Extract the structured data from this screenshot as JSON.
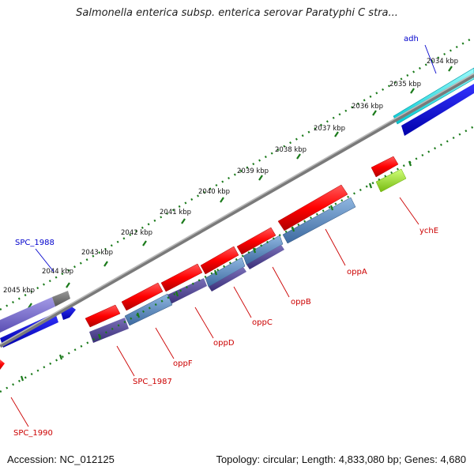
{
  "title": "Salmonella enterica subsp. enterica serovar Paratyphi C stra...",
  "accession": "Accession: NC_012125",
  "summary": "Topology: circular; Length: 4,833,080 bp; Genes: 4,680",
  "ticks": [
    "2034 kbp",
    "2035 kbp",
    "2036 kbp",
    "2037 kbp",
    "2038 kbp",
    "2039 kbp",
    "2040 kbp",
    "2041 kbp",
    "2042 kbp",
    "2043 kbp",
    "2044 kbp",
    "2045 kbp"
  ],
  "gene_labels": [
    {
      "text": "adh",
      "color": "#0000cc"
    },
    {
      "text": "SPC_1988",
      "color": "#0000cc"
    },
    {
      "text": "ychE",
      "color": "#cc0000"
    },
    {
      "text": "oppA",
      "color": "#cc0000"
    },
    {
      "text": "oppB",
      "color": "#cc0000"
    },
    {
      "text": "oppC",
      "color": "#cc0000"
    },
    {
      "text": "oppD",
      "color": "#cc0000"
    },
    {
      "text": "oppF",
      "color": "#cc0000"
    },
    {
      "text": "SPC_1987",
      "color": "#cc0000"
    },
    {
      "text": "SPC_1990",
      "color": "#cc0000"
    }
  ],
  "colors": {
    "forward_cds": "#e00000",
    "cog_blue": "#4f86c0",
    "cog_purple": "#4a3f8c",
    "cyan": "#00e0e0",
    "blue": "#0000e0",
    "lime": "#99dd22",
    "backbone": "#888888",
    "tick_green": "#1a7a1a"
  }
}
